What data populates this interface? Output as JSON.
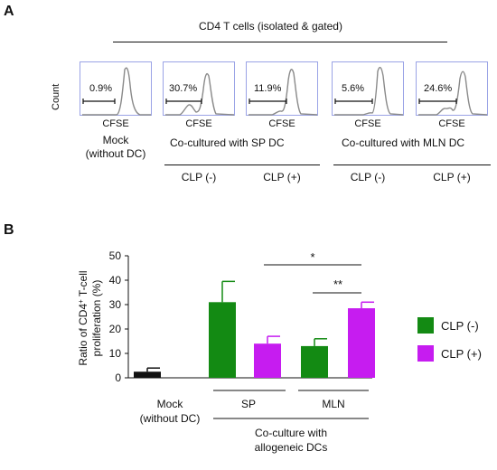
{
  "panel_a": {
    "label": "A",
    "header": "CD4 T cells (isolated & gated)",
    "y_axis_label": "Count",
    "x_axis_label": "CFSE",
    "histograms": [
      {
        "percent": "0.9%"
      },
      {
        "percent": "30.7%"
      },
      {
        "percent": "11.9%"
      },
      {
        "percent": "5.6%"
      },
      {
        "percent": "24.6%"
      }
    ],
    "mock_label_1": "Mock",
    "mock_label_2": "(without DC)",
    "group_sp": "Co-cultured with SP DC",
    "group_mln": "Co-cultured with MLN DC",
    "clp_labels": [
      "CLP (-)",
      "CLP (+)",
      "CLP (-)",
      "CLP (+)"
    ]
  },
  "panel_b": {
    "label": "B",
    "sig_1": "*",
    "sig_2": "**",
    "group_mock_1": "Mock",
    "group_mock_2": "(without DC)",
    "group_sp": "SP",
    "group_mln": "MLN",
    "coculture_1": "Co-culture with",
    "coculture_2": "allogeneic DCs"
  },
  "colors": {
    "clp_minus": "#138a13",
    "clp_plus": "#c61cf0",
    "mock": "#111111"
  },
  "chart_data": {
    "type": "bar",
    "ylabel_line1": "Ratio of CD4+ T-cell",
    "ylabel_line2": "proliferation (%)",
    "ylim": [
      0,
      50
    ],
    "yticks": [
      "0",
      "10",
      "20",
      "30",
      "40",
      "50"
    ],
    "bars": [
      {
        "group": "Mock",
        "value": 2.5,
        "error": 1.5,
        "color": "#111111"
      },
      {
        "group": "SP",
        "series": "CLP (-)",
        "value": 31,
        "error": 8.5,
        "color": "#138a13"
      },
      {
        "group": "SP",
        "series": "CLP (+)",
        "value": 14,
        "error": 3,
        "color": "#c61cf0"
      },
      {
        "group": "MLN",
        "series": "CLP (-)",
        "value": 13,
        "error": 3,
        "color": "#138a13"
      },
      {
        "group": "MLN",
        "series": "CLP (+)",
        "value": 28.5,
        "error": 2.5,
        "color": "#c61cf0"
      }
    ],
    "legend": [
      {
        "name": "CLP (-)",
        "color": "#138a13"
      },
      {
        "name": "CLP (+)",
        "color": "#c61cf0"
      }
    ],
    "legend_position": "right"
  }
}
